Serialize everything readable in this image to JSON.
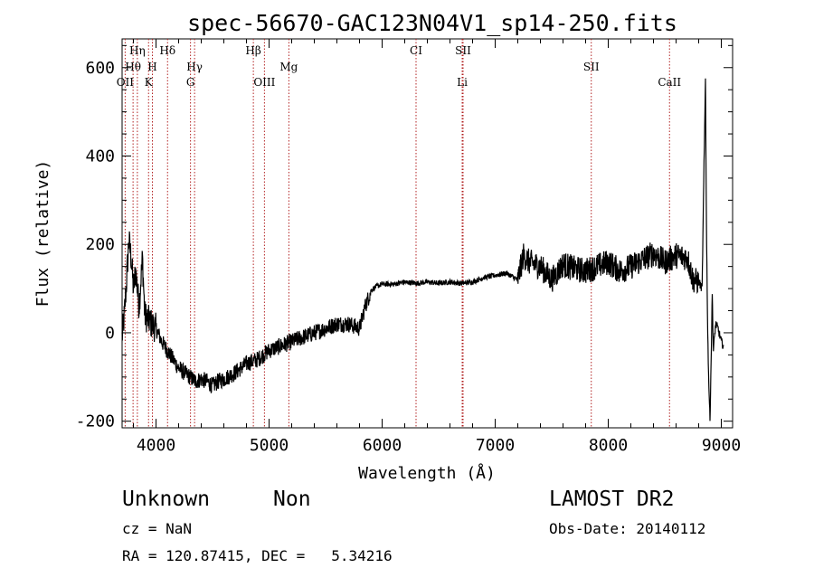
{
  "chart_data": {
    "type": "line",
    "title": "spec-56670-GAC123N04V1_sp14-250.fits",
    "xlabel": "Wavelength (Å)",
    "ylabel": "Flux (relative)",
    "xlim": [
      3700,
      9100
    ],
    "ylim": [
      -215,
      665
    ],
    "xticks": [
      4000,
      5000,
      6000,
      7000,
      8000,
      9000
    ],
    "yticks": [
      -200,
      0,
      200,
      400,
      600
    ],
    "grid": false,
    "series": [
      {
        "x": [
          3700,
          3720,
          3740,
          3760,
          3780,
          3800,
          3820,
          3850,
          3880,
          3900,
          3930,
          3960,
          4000,
          4050,
          4100,
          4150,
          4200,
          4250,
          4300,
          4350,
          4400,
          4450,
          4500,
          4550,
          4600,
          4700,
          4800,
          4900,
          5000,
          5100,
          5200,
          5300,
          5400,
          5500,
          5600,
          5700,
          5800,
          5850,
          5880,
          5900,
          5920,
          5950,
          6000,
          6100,
          6200,
          6300,
          6400,
          6500,
          6600,
          6700,
          6800,
          6900,
          7000,
          7100,
          7200,
          7250,
          7300,
          7400,
          7500,
          7600,
          7700,
          7800,
          7900,
          8000,
          8100,
          8200,
          8300,
          8400,
          8500,
          8600,
          8700,
          8750,
          8800,
          8830,
          8850,
          8860,
          8870,
          8880,
          8890,
          8900,
          8910,
          8920,
          8930,
          8950,
          8970,
          9000,
          9020
        ],
        "y": [
          -10,
          40,
          120,
          210,
          170,
          100,
          140,
          60,
          170,
          40,
          30,
          20,
          10,
          -20,
          -40,
          -60,
          -80,
          -90,
          -100,
          -110,
          -105,
          -110,
          -120,
          -110,
          -105,
          -90,
          -70,
          -60,
          -40,
          -30,
          -20,
          -10,
          0,
          10,
          20,
          20,
          10,
          60,
          80,
          95,
          100,
          105,
          110,
          110,
          115,
          112,
          115,
          112,
          115,
          112,
          115,
          125,
          130,
          135,
          120,
          175,
          160,
          150,
          120,
          155,
          145,
          140,
          150,
          160,
          140,
          150,
          165,
          180,
          160,
          175,
          170,
          120,
          115,
          100,
          420,
          580,
          200,
          0,
          -120,
          -200,
          -60,
          90,
          -40,
          20,
          10,
          -20,
          -30
        ]
      }
    ],
    "line_markers": [
      {
        "label": "Hη",
        "x": 3835,
        "row": 0
      },
      {
        "label": "Hθ",
        "x": 3797,
        "row": 1
      },
      {
        "label": "OII",
        "x": 3727,
        "row": 2
      },
      {
        "label": "H",
        "x": 3968,
        "row": 1
      },
      {
        "label": "K",
        "x": 3934,
        "row": 2
      },
      {
        "label": "Hδ",
        "x": 4102,
        "row": 0
      },
      {
        "label": "Hγ",
        "x": 4341,
        "row": 1
      },
      {
        "label": "G",
        "x": 4305,
        "row": 2
      },
      {
        "label": "Hβ",
        "x": 4861,
        "row": 0
      },
      {
        "label": "OIII",
        "x": 4959,
        "row": 2
      },
      {
        "label": "Mg",
        "x": 5175,
        "row": 1
      },
      {
        "label": "CI",
        "x": 6300,
        "row": 0
      },
      {
        "label": "SII",
        "x": 6716,
        "row": 0
      },
      {
        "label": "Li",
        "x": 6708,
        "row": 2
      },
      {
        "label": "SII",
        "x": 7850,
        "row": 1
      },
      {
        "label": "CaII",
        "x": 8542,
        "row": 2
      }
    ]
  },
  "info": {
    "classification": "Unknown",
    "subclass": "Non",
    "survey": "LAMOST DR2",
    "redshift": "cz = NaN",
    "obs_date": "Obs-Date: 20140112",
    "coords": "RA = 120.87415, DEC =   5.34216"
  }
}
